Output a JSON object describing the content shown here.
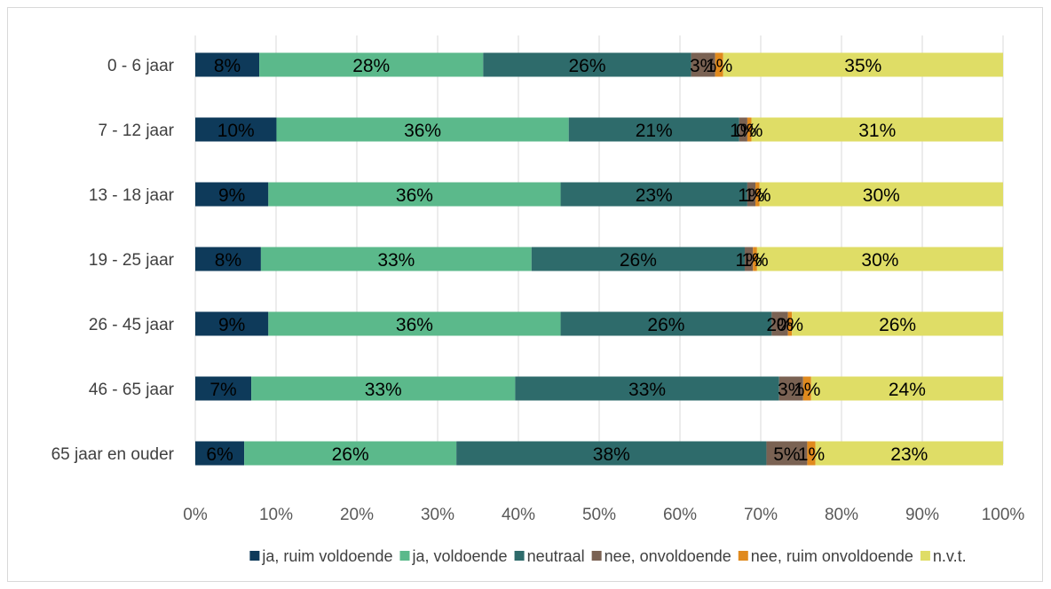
{
  "chart_data": {
    "type": "bar",
    "orientation": "horizontal",
    "stacked": true,
    "categories": [
      "0 - 6 jaar",
      "7 - 12 jaar",
      "13 - 18 jaar",
      "19 - 25 jaar",
      "26 - 45 jaar",
      "46 - 65 jaar",
      "65 jaar en ouder"
    ],
    "series": [
      {
        "name": "ja, ruim voldoende",
        "color": "#0e3a5a",
        "values": [
          8,
          10,
          9,
          8,
          9,
          7,
          6
        ],
        "labels": [
          "8%",
          "10%",
          "9%",
          "8%",
          "9%",
          "7%",
          "6%"
        ]
      },
      {
        "name": "ja, voldoende",
        "color": "#5bb98b",
        "values": [
          28,
          36,
          36,
          33,
          36,
          33,
          26
        ],
        "labels": [
          "28%",
          "36%",
          "36%",
          "33%",
          "36%",
          "33%",
          "26%"
        ]
      },
      {
        "name": "neutraal",
        "color": "#2e6b6b",
        "values": [
          26,
          21,
          23,
          26,
          26,
          33,
          38
        ],
        "labels": [
          "26%",
          "21%",
          "23%",
          "26%",
          "26%",
          "33%",
          "38%"
        ]
      },
      {
        "name": "nee, onvoldoende",
        "color": "#7a6253",
        "values": [
          3,
          1,
          1,
          1,
          2,
          3,
          5
        ],
        "labels": [
          "3%",
          "1%",
          "1%",
          "1%",
          "2%",
          "3%",
          "5%"
        ]
      },
      {
        "name": "nee, ruim onvoldoende",
        "color": "#e08a1e",
        "values": [
          1,
          0.5,
          0.5,
          0.5,
          0.5,
          1,
          1
        ],
        "labels": [
          "1%",
          "0%",
          "1%",
          "1%",
          "0%",
          "1%",
          "1%"
        ]
      },
      {
        "name": "n.v.t.",
        "color": "#dfdd66",
        "values": [
          35,
          31,
          30,
          30,
          26,
          24,
          23
        ],
        "labels": [
          "35%",
          "31%",
          "30%",
          "30%",
          "26%",
          "24%",
          "23%"
        ]
      }
    ],
    "xlim": [
      0,
      100
    ],
    "x_ticks": [
      "0%",
      "10%",
      "20%",
      "30%",
      "40%",
      "50%",
      "60%",
      "70%",
      "80%",
      "90%",
      "100%"
    ],
    "grid": true,
    "legend": "bottom",
    "title": "",
    "xlabel": "",
    "ylabel": ""
  }
}
